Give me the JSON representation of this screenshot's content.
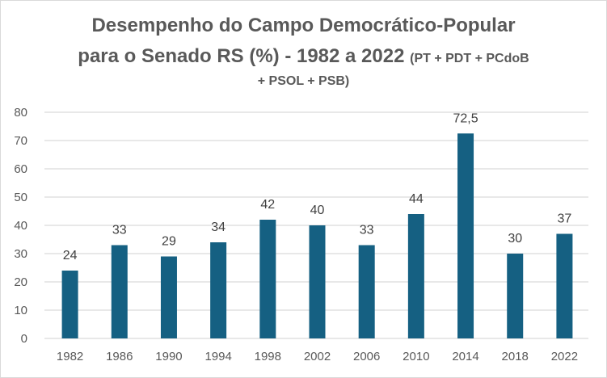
{
  "chart_data": {
    "type": "bar",
    "title_line1": "Desempenho do Campo Democrático-Popular",
    "title_line2": "para o Senado RS (%) - 1982 a 2022",
    "title_line2_small": "(PT + PDT + PCdoB",
    "title_line3": "+ PSOL + PSB)",
    "xlabel": "",
    "ylabel": "",
    "categories": [
      "1982",
      "1986",
      "1990",
      "1994",
      "1998",
      "2002",
      "2006",
      "2010",
      "2014",
      "2018",
      "2022"
    ],
    "values": [
      24,
      33,
      29,
      34,
      42,
      40,
      33,
      44,
      72.5,
      30,
      37
    ],
    "data_labels": [
      "24",
      "33",
      "29",
      "34",
      "42",
      "40",
      "33",
      "44",
      "72,5",
      "30",
      "37"
    ],
    "ylim": [
      0,
      80
    ],
    "yticks": [
      0,
      10,
      20,
      30,
      40,
      50,
      60,
      70,
      80
    ],
    "grid": true,
    "legend": "none",
    "bar_color": "#156082"
  }
}
